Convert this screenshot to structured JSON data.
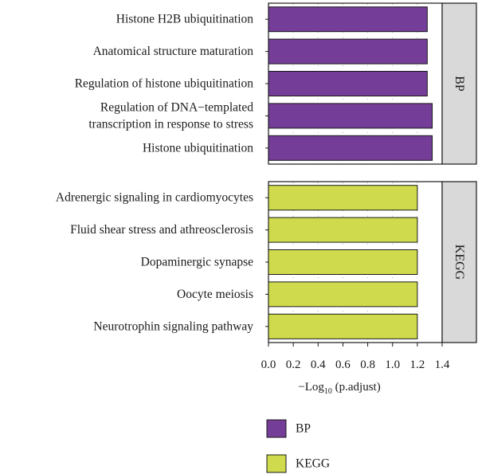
{
  "chart_data": {
    "type": "bar",
    "orientation": "horizontal",
    "xlabel_prefix": "−Log",
    "xlabel_subscript": "10",
    "xlabel_suffix": " (p.adjust)",
    "xlim": [
      0,
      1.4
    ],
    "xticks": [
      "0.0",
      "0.2",
      "0.4",
      "0.6",
      "0.8",
      "1.0",
      "1.2",
      "1.4"
    ],
    "grid": true,
    "legend_position": "bottom",
    "legend": [
      {
        "name": "BP",
        "color": "#743d98"
      },
      {
        "name": "KEGG",
        "color": "#cfdb4c"
      }
    ],
    "panels": [
      {
        "strip": "BP",
        "color": "#743d98",
        "categories": [
          [
            "Histone H2B ubiquitination"
          ],
          [
            "Anatomical structure maturation"
          ],
          [
            "Regulation of histone ubiquitination"
          ],
          [
            "Regulation of DNA−templated",
            "transcription in response to stress"
          ],
          [
            "Histone ubiquitination"
          ]
        ],
        "values": [
          1.28,
          1.28,
          1.28,
          1.32,
          1.32
        ]
      },
      {
        "strip": "KEGG",
        "color": "#cfdb4c",
        "categories": [
          [
            "Adrenergic signaling in cardiomyocytes"
          ],
          [
            "Fluid shear stress and athreosclerosis"
          ],
          [
            "Dopaminergic synapse"
          ],
          [
            "Oocyte meiosis"
          ],
          [
            "Neurotrophin signaling pathway"
          ]
        ],
        "values": [
          1.2,
          1.2,
          1.2,
          1.2,
          1.2
        ]
      }
    ]
  }
}
